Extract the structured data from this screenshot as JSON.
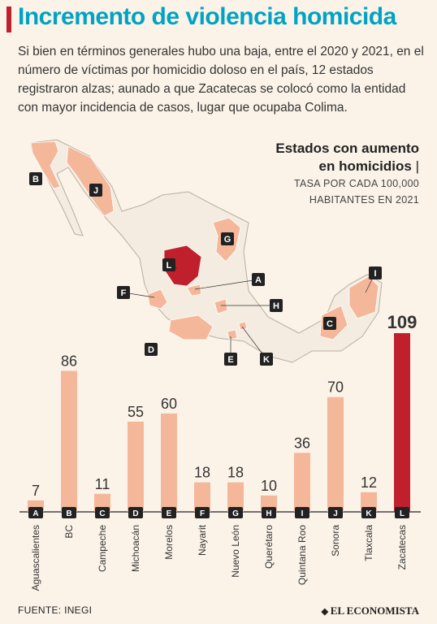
{
  "title": "Incremento de violencia homicida",
  "intro": "Si bien en términos generales hubo una baja, entre el 2020 y 2021, en el número de víctimas por homicidio doloso en el país, 12 estados registraron alzas; aunado a que Zacatecas se colocó como la entidad con mayor incidencia de casos, lugar que ocupaba Colima.",
  "subtitle_line1": "Estados con aumento",
  "subtitle_line2": "en homicidios",
  "subtitle_separator": "|",
  "subtitle_unit_line1": "TASA POR CADA 100,000",
  "subtitle_unit_line2": "HABITANTES EN 2021",
  "source": "FUENTE: INEGI",
  "brand": "EL ECONOMISTA",
  "colors": {
    "accent": "#00a3c4",
    "bar": "#f5b79a",
    "highlight": "#c0202c",
    "map_base": "#f4ece0",
    "map_state": "#f5b79a",
    "label_bg": "#222222"
  },
  "chart_data": {
    "type": "bar",
    "categories": [
      "Aguascalientes",
      "BC",
      "Campeche",
      "Michoacán",
      "Morelos",
      "Nayarit",
      "Nuevo León",
      "Querétaro",
      "Quintana Roo",
      "Sonora",
      "Tlaxcala",
      "Zacatecas"
    ],
    "codes": [
      "A",
      "B",
      "C",
      "D",
      "E",
      "F",
      "G",
      "H",
      "I",
      "J",
      "K",
      "L"
    ],
    "values": [
      7,
      86,
      11,
      55,
      60,
      18,
      18,
      10,
      36,
      70,
      12,
      109
    ],
    "highlight_index": 11,
    "ylim": [
      0,
      110
    ]
  }
}
